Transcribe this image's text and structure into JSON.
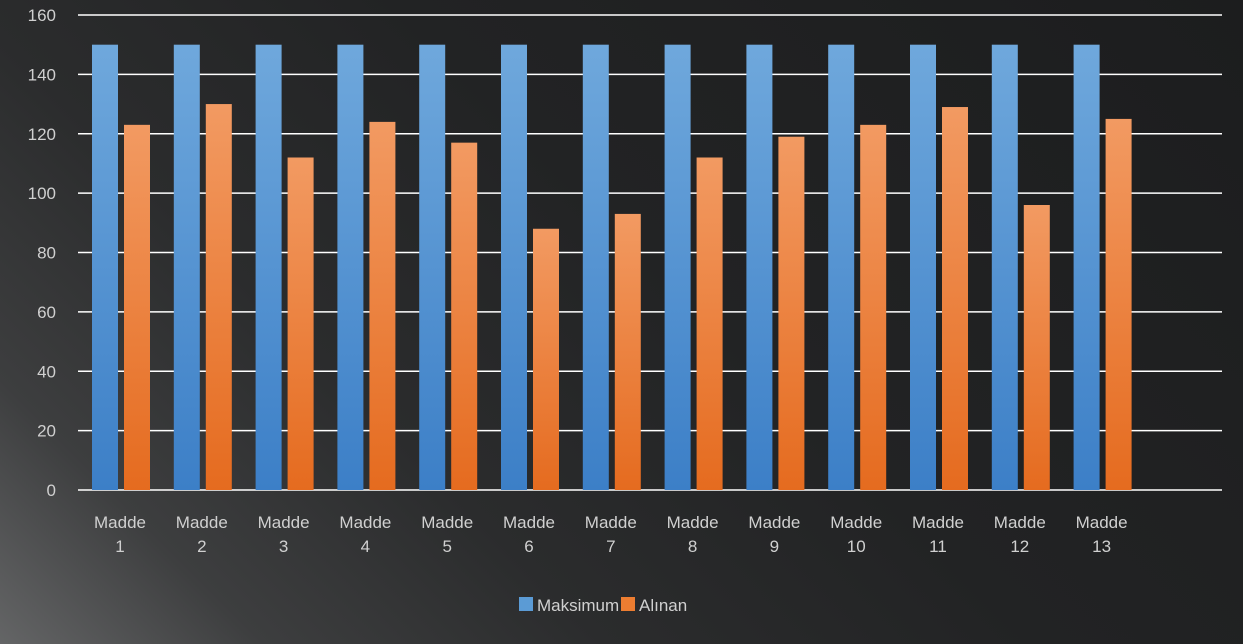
{
  "chart_data": {
    "type": "bar",
    "categories": [
      [
        "Madde",
        "1"
      ],
      [
        "Madde",
        "2"
      ],
      [
        "Madde",
        "3"
      ],
      [
        "Madde",
        "4"
      ],
      [
        "Madde",
        "5"
      ],
      [
        "Madde",
        "6"
      ],
      [
        "Madde",
        "7"
      ],
      [
        "Madde",
        "8"
      ],
      [
        "Madde",
        "9"
      ],
      [
        "Madde",
        "10"
      ],
      [
        "Madde",
        "11"
      ],
      [
        "Madde",
        "12"
      ],
      [
        "Madde",
        "13"
      ]
    ],
    "series": [
      {
        "name": "Maksimum",
        "color": "#5b9bd5",
        "values": [
          150,
          150,
          150,
          150,
          150,
          150,
          150,
          150,
          150,
          150,
          150,
          150,
          150
        ]
      },
      {
        "name": "Alınan",
        "color": "#ed7d31",
        "values": [
          123,
          130,
          112,
          124,
          117,
          88,
          93,
          112,
          119,
          123,
          129,
          96,
          125
        ]
      }
    ],
    "ylim": [
      0,
      160
    ],
    "yticks": [
      "0",
      "20",
      "40",
      "60",
      "80",
      "100",
      "120",
      "140",
      "160"
    ],
    "grid": true,
    "legend_position": "bottom"
  }
}
